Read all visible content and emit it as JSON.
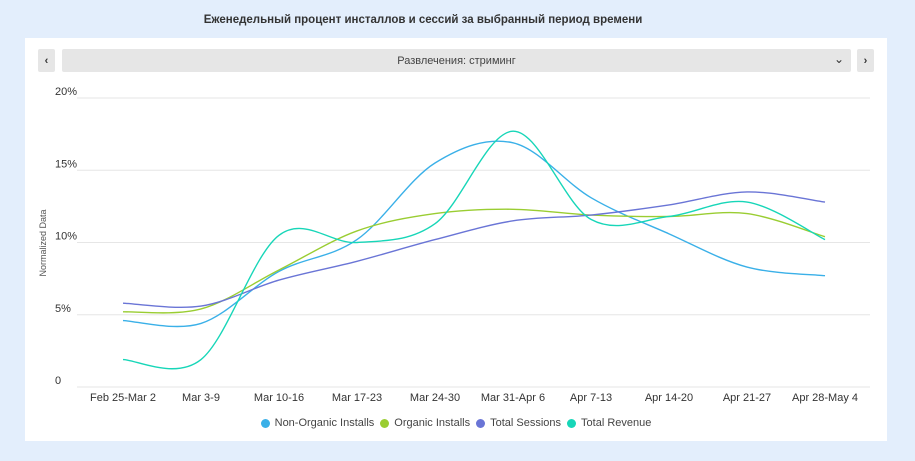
{
  "header": {
    "title": "Еженедельный процент инсталлов и сессий за выбранный период времени"
  },
  "selector": {
    "value": "Развлечения: стриминг",
    "prev_icon": "chevron-left-icon",
    "next_icon": "chevron-right-icon",
    "dropdown_icon": "chevron-down-icon"
  },
  "chart_data": {
    "type": "line",
    "title": "Еженедельный процент инсталлов и сессий за выбранный период времени",
    "ylabel": "Normalized Data",
    "xlabel": "",
    "ylim": [
      0,
      20
    ],
    "yticks": [
      {
        "value": 0,
        "label": "0"
      },
      {
        "value": 5,
        "label": "5%"
      },
      {
        "value": 10,
        "label": "10%"
      },
      {
        "value": 15,
        "label": "15%"
      },
      {
        "value": 20,
        "label": "20%"
      }
    ],
    "categories": [
      "Feb 25-Mar 2",
      "Mar 3-9",
      "Mar 10-16",
      "Mar 17-23",
      "Mar 24-30",
      "Mar 31-Apr 6",
      "Apr 7-13",
      "Apr 14-20",
      "Apr 21-27",
      "Apr 28-May 4"
    ],
    "grid": true,
    "legend_position": "bottom",
    "series": [
      {
        "name": "Non-Organic Installs",
        "color": "#3ab0e8",
        "values": [
          4.6,
          4.4,
          8.0,
          10.2,
          15.5,
          16.9,
          13.1,
          10.6,
          8.3,
          7.7
        ]
      },
      {
        "name": "Organic Installs",
        "color": "#9acd32",
        "values": [
          5.2,
          5.4,
          8.1,
          10.8,
          12.0,
          12.3,
          11.9,
          11.8,
          12.0,
          10.4
        ]
      },
      {
        "name": "Total Sessions",
        "color": "#6a75d6",
        "values": [
          5.8,
          5.6,
          7.4,
          8.7,
          10.2,
          11.5,
          11.9,
          12.6,
          13.5,
          12.8
        ]
      },
      {
        "name": "Total Revenue",
        "color": "#17d6b8",
        "values": [
          1.9,
          1.9,
          10.5,
          10.0,
          11.3,
          17.7,
          11.6,
          11.8,
          12.8,
          10.2
        ]
      }
    ]
  }
}
